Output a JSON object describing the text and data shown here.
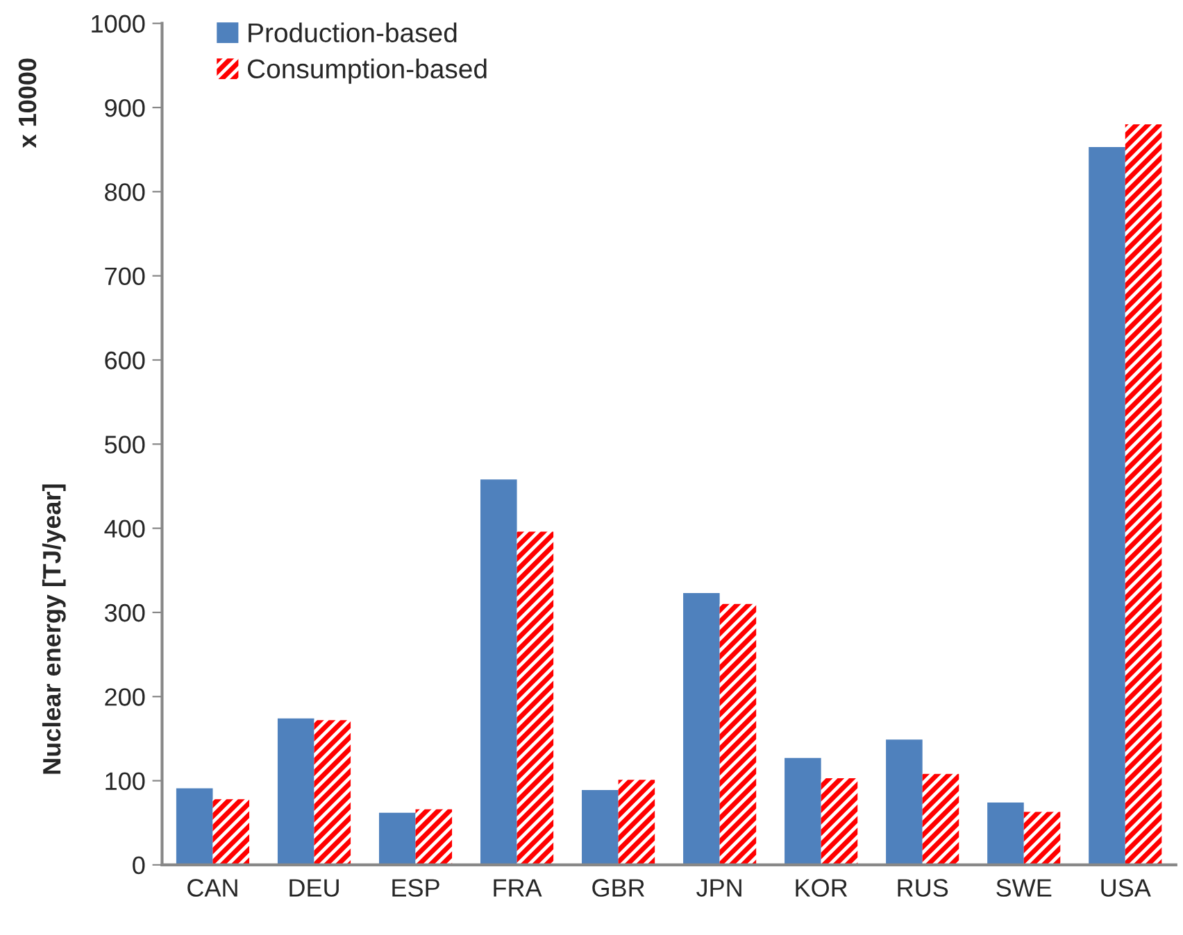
{
  "chart_data": {
    "type": "bar",
    "ylabel": "Nuclear energy [TJ/year]",
    "annotations": [
      "x 10000"
    ],
    "categories": [
      "CAN",
      "DEU",
      "ESP",
      "FRA",
      "GBR",
      "JPN",
      "KOR",
      "RUS",
      "SWE",
      "USA"
    ],
    "series": [
      {
        "name": "Production-based",
        "color": "#4f81bd",
        "values": [
          91,
          174,
          62,
          458,
          89,
          323,
          127,
          149,
          74,
          853
        ]
      },
      {
        "name": "Consumption-based",
        "color": "#ff0000",
        "values": [
          78,
          172,
          66,
          396,
          101,
          310,
          103,
          108,
          63,
          880
        ]
      }
    ],
    "ylim": [
      0,
      1000
    ],
    "yticks": [
      0,
      100,
      200,
      300,
      400,
      500,
      600,
      700,
      800,
      900,
      1000
    ],
    "grid": false,
    "legend": "top left"
  }
}
